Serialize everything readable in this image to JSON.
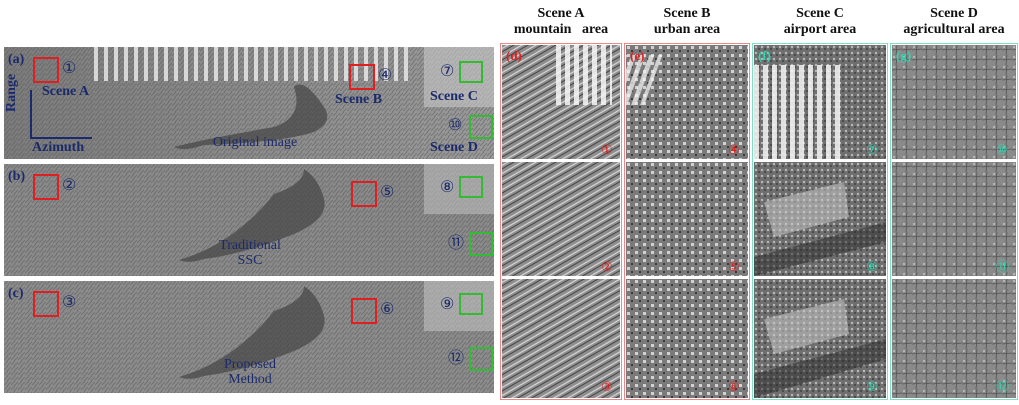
{
  "column_headers": [
    {
      "line1": "Scene A",
      "line2": "mountain   area"
    },
    {
      "line1": "Scene B",
      "line2": "urban area"
    },
    {
      "line1": "Scene C",
      "line2": "airport area"
    },
    {
      "line1": "Scene D",
      "line2": "agricultural area"
    }
  ],
  "left_panels": [
    {
      "label": "(a)",
      "caption_lines": [
        "Original image"
      ]
    },
    {
      "label": "(b)",
      "caption_lines": [
        "Traditional",
        "SSC"
      ]
    },
    {
      "label": "(c)",
      "caption_lines": [
        "Proposed",
        "Method"
      ]
    }
  ],
  "scene_labels": {
    "a": "Scene A",
    "b": "Scene B",
    "c": "Scene C",
    "d": "Scene D"
  },
  "axis_labels": {
    "range": "Range",
    "azimuth": "Azimuth"
  },
  "markers": [
    "①",
    "②",
    "③",
    "④",
    "⑤",
    "⑥",
    "⑦",
    "⑧",
    "⑨",
    "⑩",
    "⑪",
    "⑫"
  ],
  "column_labels": [
    "(d)",
    "(e)",
    "(f)",
    "(g)"
  ],
  "colors": {
    "red_box": "#e02020",
    "green_box": "#33bb33",
    "text_navy": "#1b2a6b",
    "cyan_label": "#2fd6b0"
  }
}
